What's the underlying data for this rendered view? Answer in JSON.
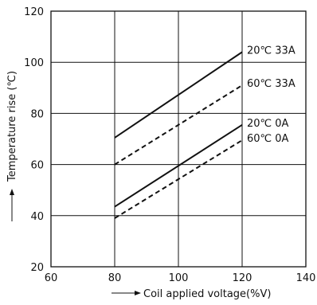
{
  "chart_data": {
    "type": "line",
    "title": "",
    "xlabel": "Coil applied voltage(%V)",
    "ylabel": "Temperature rise (℃)",
    "xlim": [
      60,
      140
    ],
    "ylim": [
      20,
      120
    ],
    "x_ticks": [
      60,
      80,
      100,
      120,
      140
    ],
    "y_ticks": [
      20,
      40,
      60,
      80,
      100,
      120
    ],
    "x_tick_labels": [
      "60",
      "80",
      "100",
      "120",
      "140"
    ],
    "y_tick_labels": [
      "20",
      "40",
      "60",
      "80",
      "100",
      "120"
    ],
    "grid": true,
    "series": [
      {
        "name": "20℃ 33A",
        "style": "solid",
        "x": [
          80,
          120
        ],
        "y": [
          70.5,
          104
        ]
      },
      {
        "name": "60℃ 33A",
        "style": "dashed",
        "x": [
          80,
          120
        ],
        "y": [
          60,
          91
        ]
      },
      {
        "name": "20℃ 0A",
        "style": "solid",
        "x": [
          80,
          120
        ],
        "y": [
          43.5,
          75.5
        ]
      },
      {
        "name": "60℃ 0A",
        "style": "dashed",
        "x": [
          80,
          120
        ],
        "y": [
          39,
          69.5
        ]
      }
    ]
  }
}
